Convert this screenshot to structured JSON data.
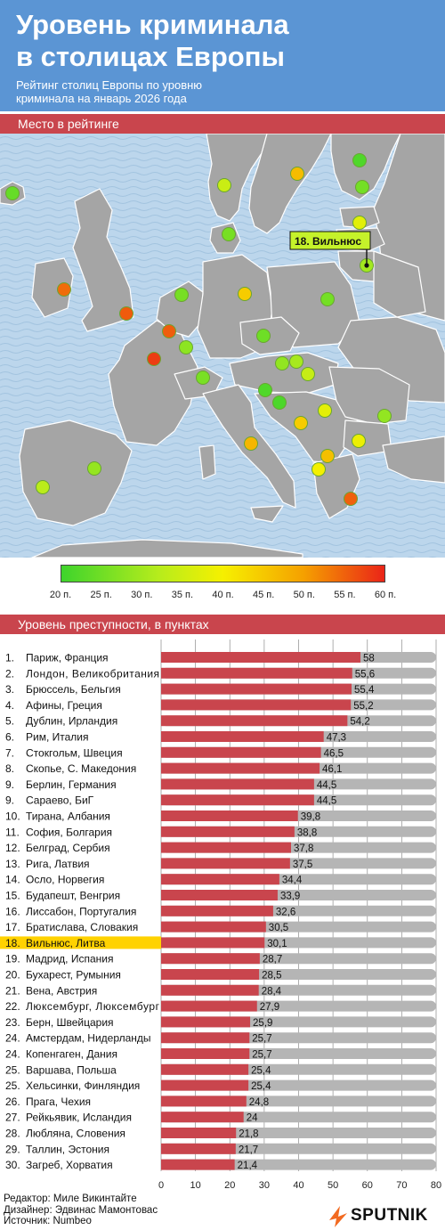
{
  "header": {
    "title_line1": "Уровень криминала",
    "title_line2": "в столицах Европы",
    "subtitle_line1": "Рейтинг столиц Европы по уровню",
    "subtitle_line2": "криминала на январь 2026 года"
  },
  "sections": {
    "map_title": "Место в рейтинге",
    "bars_title": "Уровень преступности, в пунктах"
  },
  "map": {
    "callout_label": "18. Вильнюс",
    "colors": {
      "water": "#b8d3ea",
      "land": "#a5a5a5",
      "border": "#ffffff",
      "callout_bg": "#c5f22a"
    }
  },
  "legend": {
    "ticks": [
      "20 п.",
      "25 п.",
      "30 п.",
      "35 п.",
      "40 п.",
      "45 п.",
      "50 п.",
      "55 п.",
      "60 п."
    ],
    "colors": [
      "#3ed42c",
      "#b6ec1c",
      "#f6f000",
      "#f5a000",
      "#ea2418"
    ]
  },
  "chart_data": {
    "type": "bar",
    "orientation": "horizontal",
    "xlim": [
      0,
      80
    ],
    "xticks": [
      "0",
      "10",
      "20",
      "30",
      "40",
      "50",
      "60",
      "70",
      "80"
    ],
    "highlight_rank": "18.",
    "colors": {
      "bar": "#c9454d",
      "track": "#b5b5b5",
      "highlight": "#ffd200"
    },
    "rows": [
      {
        "rank": "1.",
        "name": "Париж, Франция",
        "value": 58,
        "label": "58"
      },
      {
        "rank": "2.",
        "name": "Лондон, Великобритания",
        "value": 55.6,
        "label": "55,6"
      },
      {
        "rank": "3.",
        "name": "Брюссель, Бельгия",
        "value": 55.4,
        "label": "55,4"
      },
      {
        "rank": "4.",
        "name": "Афины, Греция",
        "value": 55.2,
        "label": "55,2"
      },
      {
        "rank": "5.",
        "name": "Дублин, Ирландия",
        "value": 54.2,
        "label": "54,2"
      },
      {
        "rank": "6.",
        "name": "Рим, Италия",
        "value": 47.3,
        "label": "47,3"
      },
      {
        "rank": "7.",
        "name": "Стокгольм, Швеция",
        "value": 46.5,
        "label": "46,5"
      },
      {
        "rank": "8.",
        "name": "Скопье, С. Македония",
        "value": 46.1,
        "label": "46,1"
      },
      {
        "rank": "9.",
        "name": "Берлин, Германия",
        "value": 44.5,
        "label": "44,5"
      },
      {
        "rank": "9.",
        "name": "Сараево, БиГ",
        "value": 44.5,
        "label": "44,5"
      },
      {
        "rank": "10.",
        "name": "Тирана, Албания",
        "value": 39.8,
        "label": "39,8"
      },
      {
        "rank": "11.",
        "name": "София, Болгария",
        "value": 38.8,
        "label": "38,8"
      },
      {
        "rank": "12.",
        "name": "Белград, Сербия",
        "value": 37.8,
        "label": "37,8"
      },
      {
        "rank": "13.",
        "name": "Рига, Латвия",
        "value": 37.5,
        "label": "37,5"
      },
      {
        "rank": "14.",
        "name": "Осло, Норвегия",
        "value": 34.4,
        "label": "34,4"
      },
      {
        "rank": "15.",
        "name": "Будапешт, Венгрия",
        "value": 33.9,
        "label": "33,9"
      },
      {
        "rank": "16.",
        "name": "Лиссабон, Португалия",
        "value": 32.6,
        "label": "32,6"
      },
      {
        "rank": "17.",
        "name": "Братислава, Словакия",
        "value": 30.5,
        "label": "30,5"
      },
      {
        "rank": "18.",
        "name": "Вильнюс, Литва",
        "value": 30.1,
        "label": "30,1"
      },
      {
        "rank": "19.",
        "name": "Мадрид, Испания",
        "value": 28.7,
        "label": "28,7"
      },
      {
        "rank": "20.",
        "name": "Бухарест, Румыния",
        "value": 28.5,
        "label": "28,5"
      },
      {
        "rank": "21.",
        "name": "Вена, Австрия",
        "value": 28.4,
        "label": "28,4"
      },
      {
        "rank": "22.",
        "name": "Люксембург, Люксембург",
        "value": 27.9,
        "label": "27,9"
      },
      {
        "rank": "23.",
        "name": "Берн, Швейцария",
        "value": 25.9,
        "label": "25,9"
      },
      {
        "rank": "24.",
        "name": "Амстердам, Нидерланды",
        "value": 25.7,
        "label": "25,7"
      },
      {
        "rank": "24.",
        "name": "Копенгаген, Дания",
        "value": 25.7,
        "label": "25,7"
      },
      {
        "rank": "25.",
        "name": "Варшава, Польша",
        "value": 25.4,
        "label": "25,4"
      },
      {
        "rank": "25.",
        "name": "Хельсинки, Финляндия",
        "value": 25.4,
        "label": "25,4"
      },
      {
        "rank": "26.",
        "name": "Прага, Чехия",
        "value": 24.8,
        "label": "24,8"
      },
      {
        "rank": "27.",
        "name": "Рейкьявик, Исландия",
        "value": 24,
        "label": "24"
      },
      {
        "rank": "28.",
        "name": "Любляна, Словения",
        "value": 21.8,
        "label": "21,8"
      },
      {
        "rank": "29.",
        "name": "Таллин, Эстония",
        "value": 21.7,
        "label": "21,7"
      },
      {
        "rank": "30.",
        "name": "Загреб, Хорватия",
        "value": 21.4,
        "label": "21,4"
      }
    ]
  },
  "credits": {
    "editor": "Редактор: Миле Викинтайте",
    "designer": "Дизайнер: Эдвинас Мамонтовас",
    "source": "Источник: Numbeo"
  },
  "logo": {
    "text": "SPUTNIK",
    "color": "#f26a21"
  }
}
